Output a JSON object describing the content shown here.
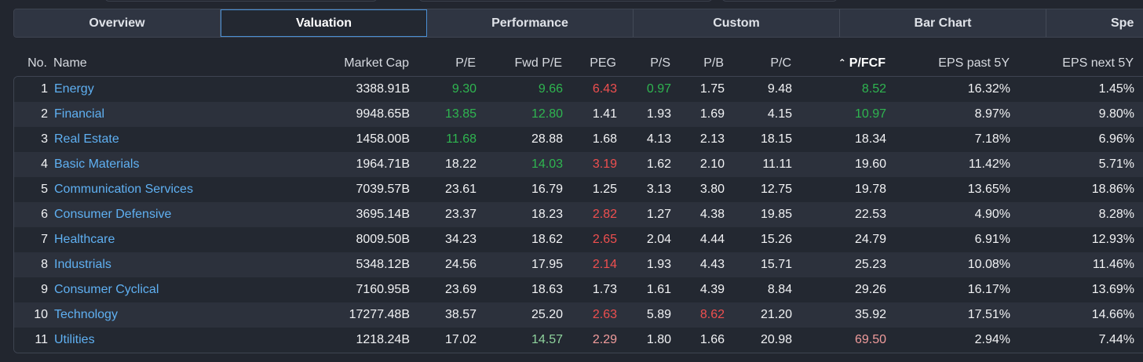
{
  "tabs": [
    {
      "label": "Overview",
      "active": false
    },
    {
      "label": "Valuation",
      "active": true
    },
    {
      "label": "Performance",
      "active": false
    },
    {
      "label": "Custom",
      "active": false
    },
    {
      "label": "Bar Chart",
      "active": false
    },
    {
      "label": "Spe",
      "active": false
    }
  ],
  "columns": {
    "no": "No.",
    "name": "Name",
    "market_cap": "Market Cap",
    "pe": "P/E",
    "fwd_pe": "Fwd P/E",
    "peg": "PEG",
    "ps": "P/S",
    "pb": "P/B",
    "pc": "P/C",
    "pfcf": "P/FCF",
    "eps_past_5y": "EPS past 5Y",
    "eps_next_5y": "EPS next 5Y"
  },
  "sort": {
    "column": "P/FCF",
    "direction": "ascending",
    "icon": "chevron-up-icon"
  },
  "colors": {
    "positive": "#2fb550",
    "negative": "#ef4f4f",
    "link": "#5fb0f2",
    "active_tab_border": "#4a8fd4"
  },
  "rows": [
    {
      "no": "1",
      "name": "Energy",
      "market_cap": "3388.91B",
      "pe": "9.30",
      "fwd_pe": "9.66",
      "peg": "6.43",
      "ps": "0.97",
      "pb": "1.75",
      "pc": "9.48",
      "pfcf": "8.52",
      "eps_past_5y": "16.32%",
      "eps_next_5y": "1.45%",
      "tone": {
        "pe": "pos",
        "fwd_pe": "pos",
        "peg": "neg",
        "ps": "pos",
        "pb": "neu",
        "pc": "neu",
        "pfcf": "pos"
      }
    },
    {
      "no": "2",
      "name": "Financial",
      "market_cap": "9948.65B",
      "pe": "13.85",
      "fwd_pe": "12.80",
      "peg": "1.41",
      "ps": "1.93",
      "pb": "1.69",
      "pc": "4.15",
      "pfcf": "10.97",
      "eps_past_5y": "8.97%",
      "eps_next_5y": "9.80%",
      "tone": {
        "pe": "pos",
        "fwd_pe": "pos",
        "peg": "neu",
        "ps": "neu",
        "pb": "neu",
        "pc": "neu",
        "pfcf": "pos"
      }
    },
    {
      "no": "3",
      "name": "Real Estate",
      "market_cap": "1458.00B",
      "pe": "11.68",
      "fwd_pe": "28.88",
      "peg": "1.68",
      "ps": "4.13",
      "pb": "2.13",
      "pc": "18.15",
      "pfcf": "18.34",
      "eps_past_5y": "7.18%",
      "eps_next_5y": "6.96%",
      "tone": {
        "pe": "pos",
        "fwd_pe": "neu",
        "peg": "neu",
        "ps": "neu",
        "pb": "neu",
        "pc": "neu",
        "pfcf": "neu"
      }
    },
    {
      "no": "4",
      "name": "Basic Materials",
      "market_cap": "1964.71B",
      "pe": "18.22",
      "fwd_pe": "14.03",
      "peg": "3.19",
      "ps": "1.62",
      "pb": "2.10",
      "pc": "11.11",
      "pfcf": "19.60",
      "eps_past_5y": "11.42%",
      "eps_next_5y": "5.71%",
      "tone": {
        "pe": "neu",
        "fwd_pe": "pos",
        "peg": "neg",
        "ps": "neu",
        "pb": "neu",
        "pc": "neu",
        "pfcf": "neu"
      }
    },
    {
      "no": "5",
      "name": "Communication Services",
      "market_cap": "7039.57B",
      "pe": "23.61",
      "fwd_pe": "16.79",
      "peg": "1.25",
      "ps": "3.13",
      "pb": "3.80",
      "pc": "12.75",
      "pfcf": "19.78",
      "eps_past_5y": "13.65%",
      "eps_next_5y": "18.86%",
      "tone": {
        "pe": "neu",
        "fwd_pe": "neu",
        "peg": "neu",
        "ps": "neu",
        "pb": "neu",
        "pc": "neu",
        "pfcf": "neu"
      }
    },
    {
      "no": "6",
      "name": "Consumer Defensive",
      "market_cap": "3695.14B",
      "pe": "23.37",
      "fwd_pe": "18.23",
      "peg": "2.82",
      "ps": "1.27",
      "pb": "4.38",
      "pc": "19.85",
      "pfcf": "22.53",
      "eps_past_5y": "4.90%",
      "eps_next_5y": "8.28%",
      "tone": {
        "pe": "neu",
        "fwd_pe": "neu",
        "peg": "neg",
        "ps": "neu",
        "pb": "neu",
        "pc": "neu",
        "pfcf": "neu"
      }
    },
    {
      "no": "7",
      "name": "Healthcare",
      "market_cap": "8009.50B",
      "pe": "34.23",
      "fwd_pe": "18.62",
      "peg": "2.65",
      "ps": "2.04",
      "pb": "4.44",
      "pc": "15.26",
      "pfcf": "24.79",
      "eps_past_5y": "6.91%",
      "eps_next_5y": "12.93%",
      "tone": {
        "pe": "neu",
        "fwd_pe": "neu",
        "peg": "neg",
        "ps": "neu",
        "pb": "neu",
        "pc": "neu",
        "pfcf": "neu"
      }
    },
    {
      "no": "8",
      "name": "Industrials",
      "market_cap": "5348.12B",
      "pe": "24.56",
      "fwd_pe": "17.95",
      "peg": "2.14",
      "ps": "1.93",
      "pb": "4.43",
      "pc": "15.71",
      "pfcf": "25.23",
      "eps_past_5y": "10.08%",
      "eps_next_5y": "11.46%",
      "tone": {
        "pe": "neu",
        "fwd_pe": "neu",
        "peg": "neg",
        "ps": "neu",
        "pb": "neu",
        "pc": "neu",
        "pfcf": "neu"
      }
    },
    {
      "no": "9",
      "name": "Consumer Cyclical",
      "market_cap": "7160.95B",
      "pe": "23.69",
      "fwd_pe": "18.63",
      "peg": "1.73",
      "ps": "1.61",
      "pb": "4.39",
      "pc": "8.84",
      "pfcf": "29.26",
      "eps_past_5y": "16.17%",
      "eps_next_5y": "13.69%",
      "tone": {
        "pe": "neu",
        "fwd_pe": "neu",
        "peg": "neu",
        "ps": "neu",
        "pb": "neu",
        "pc": "neu",
        "pfcf": "neu"
      }
    },
    {
      "no": "10",
      "name": "Technology",
      "market_cap": "17277.48B",
      "pe": "38.57",
      "fwd_pe": "25.20",
      "peg": "2.63",
      "ps": "5.89",
      "pb": "8.62",
      "pc": "21.20",
      "pfcf": "35.92",
      "eps_past_5y": "17.51%",
      "eps_next_5y": "14.66%",
      "tone": {
        "pe": "neu",
        "fwd_pe": "neu",
        "peg": "neg",
        "ps": "neu",
        "pb": "neg",
        "pc": "neu",
        "pfcf": "neu"
      }
    },
    {
      "no": "11",
      "name": "Utilities",
      "market_cap": "1218.24B",
      "pe": "17.02",
      "fwd_pe": "14.57",
      "peg": "2.29",
      "ps": "1.80",
      "pb": "1.66",
      "pc": "20.98",
      "pfcf": "69.50",
      "eps_past_5y": "2.94%",
      "eps_next_5y": "7.44%",
      "tone": {
        "pe": "neu",
        "fwd_pe": "mpos",
        "peg": "mneg",
        "ps": "neu",
        "pb": "neu",
        "pc": "neu",
        "pfcf": "mneg"
      }
    }
  ]
}
